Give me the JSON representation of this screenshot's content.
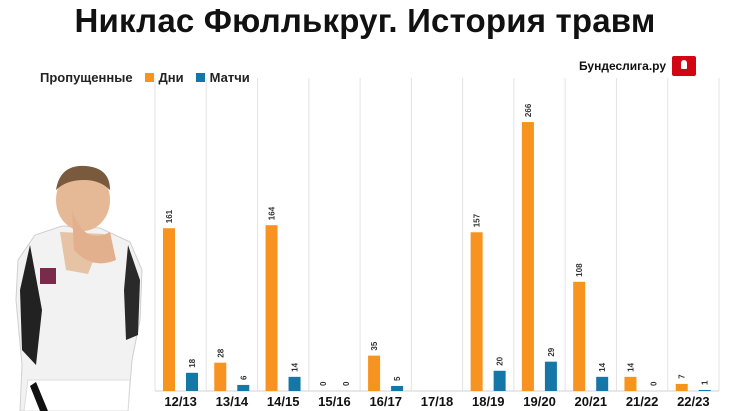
{
  "title": "Никлас Фюллькруг.  История травм",
  "legend": {
    "label": "Пропущенные",
    "items": [
      {
        "name": "Дни",
        "color": "#f7931e"
      },
      {
        "name": "Матчи",
        "color": "#1477a8"
      }
    ]
  },
  "brand": {
    "text": "Бундеслига.ру",
    "logo": "bundesliga-logo"
  },
  "chart_data": {
    "type": "bar",
    "title": "Никлас Фюллькруг.  История травм",
    "categories": [
      "12/13",
      "13/14",
      "14/15",
      "15/16",
      "16/17",
      "17/18",
      "18/19",
      "19/20",
      "20/21",
      "21/22",
      "22/23"
    ],
    "series": [
      {
        "name": "Дни",
        "color": "#f7931e",
        "values": [
          161,
          28,
          164,
          0,
          35,
          null,
          157,
          266,
          108,
          14,
          7
        ]
      },
      {
        "name": "Матчи",
        "color": "#1477a8",
        "values": [
          18,
          6,
          14,
          0,
          5,
          null,
          20,
          29,
          14,
          0,
          1
        ]
      }
    ],
    "legend": "top-left",
    "grid": {
      "vertical": true,
      "horizontal": false
    },
    "data_labels": true
  }
}
